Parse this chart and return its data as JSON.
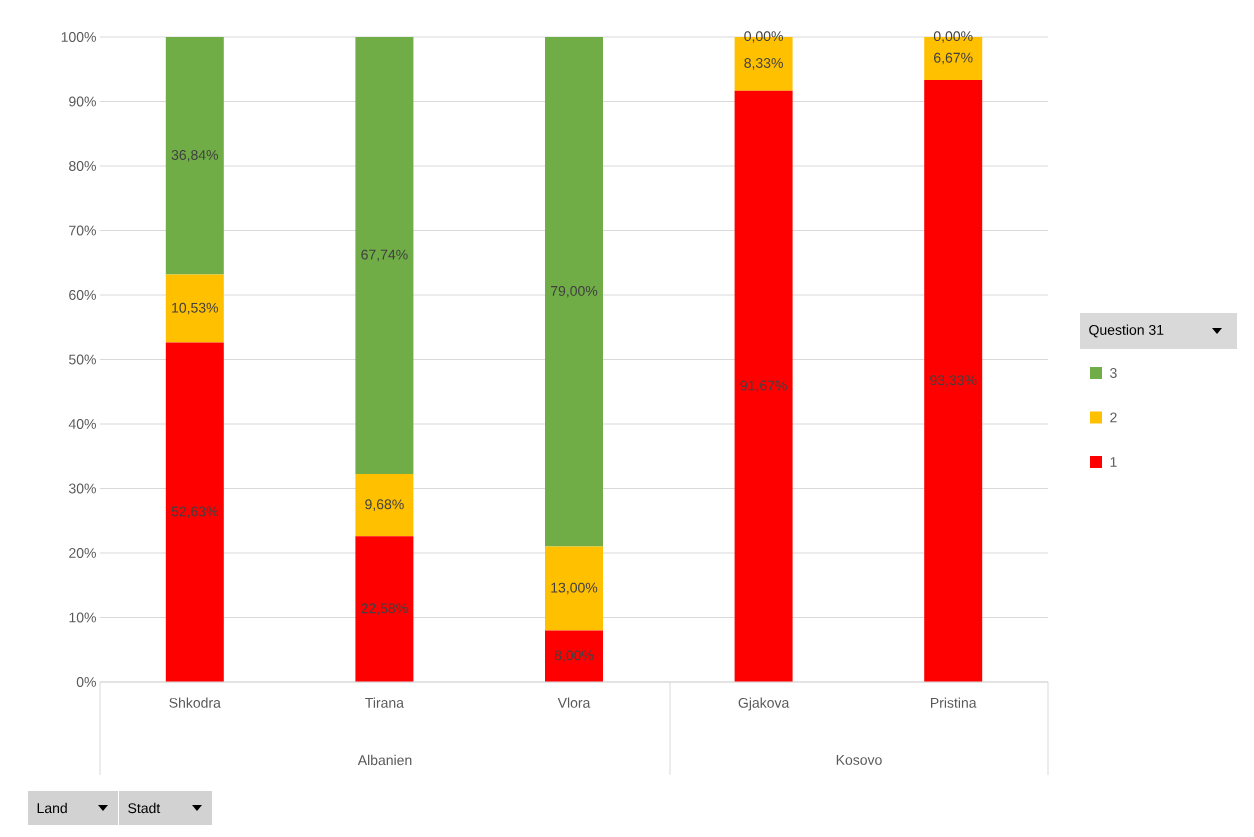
{
  "chart_data": {
    "type": "bar",
    "stacked": true,
    "categories": [
      "Shkodra",
      "Tirana",
      "Vlora",
      "Gjakova",
      "Pristina"
    ],
    "series": [
      {
        "name": "1",
        "color": "#ff0000",
        "values": [
          52.63,
          22.58,
          8.0,
          91.67,
          93.33
        ],
        "value_labels": [
          "52,63%",
          "22,58%",
          "8,00%",
          "91,67%",
          "93,33%"
        ]
      },
      {
        "name": "2",
        "color": "#ffc000",
        "values": [
          10.53,
          9.68,
          13.0,
          8.33,
          6.67
        ],
        "value_labels": [
          "10,53%",
          "9,68%",
          "13,00%",
          "8,33%",
          "6,67%"
        ]
      },
      {
        "name": "3",
        "color": "#70ad47",
        "values": [
          36.84,
          67.74,
          79.0,
          0.0,
          0.0
        ],
        "value_labels": [
          "36,84%",
          "67,74%",
          "79,00%",
          "0,00%",
          "0,00%"
        ]
      }
    ],
    "ylim": [
      0,
      100
    ],
    "yticks": [
      {
        "value": 0,
        "label": "0%"
      },
      {
        "value": 10,
        "label": "10%"
      },
      {
        "value": 20,
        "label": "20%"
      },
      {
        "value": 30,
        "label": "30%"
      },
      {
        "value": 40,
        "label": "40%"
      },
      {
        "value": 50,
        "label": "50%"
      },
      {
        "value": 60,
        "label": "60%"
      },
      {
        "value": 70,
        "label": "70%"
      },
      {
        "value": 80,
        "label": "80%"
      },
      {
        "value": 90,
        "label": "90%"
      },
      {
        "value": 100,
        "label": "100%"
      }
    ],
    "grid": "y",
    "legend": "right",
    "legend_title": "Question 31",
    "annotations": [
      "Albanien",
      "Kosovo",
      "Land",
      "Stadt"
    ]
  }
}
